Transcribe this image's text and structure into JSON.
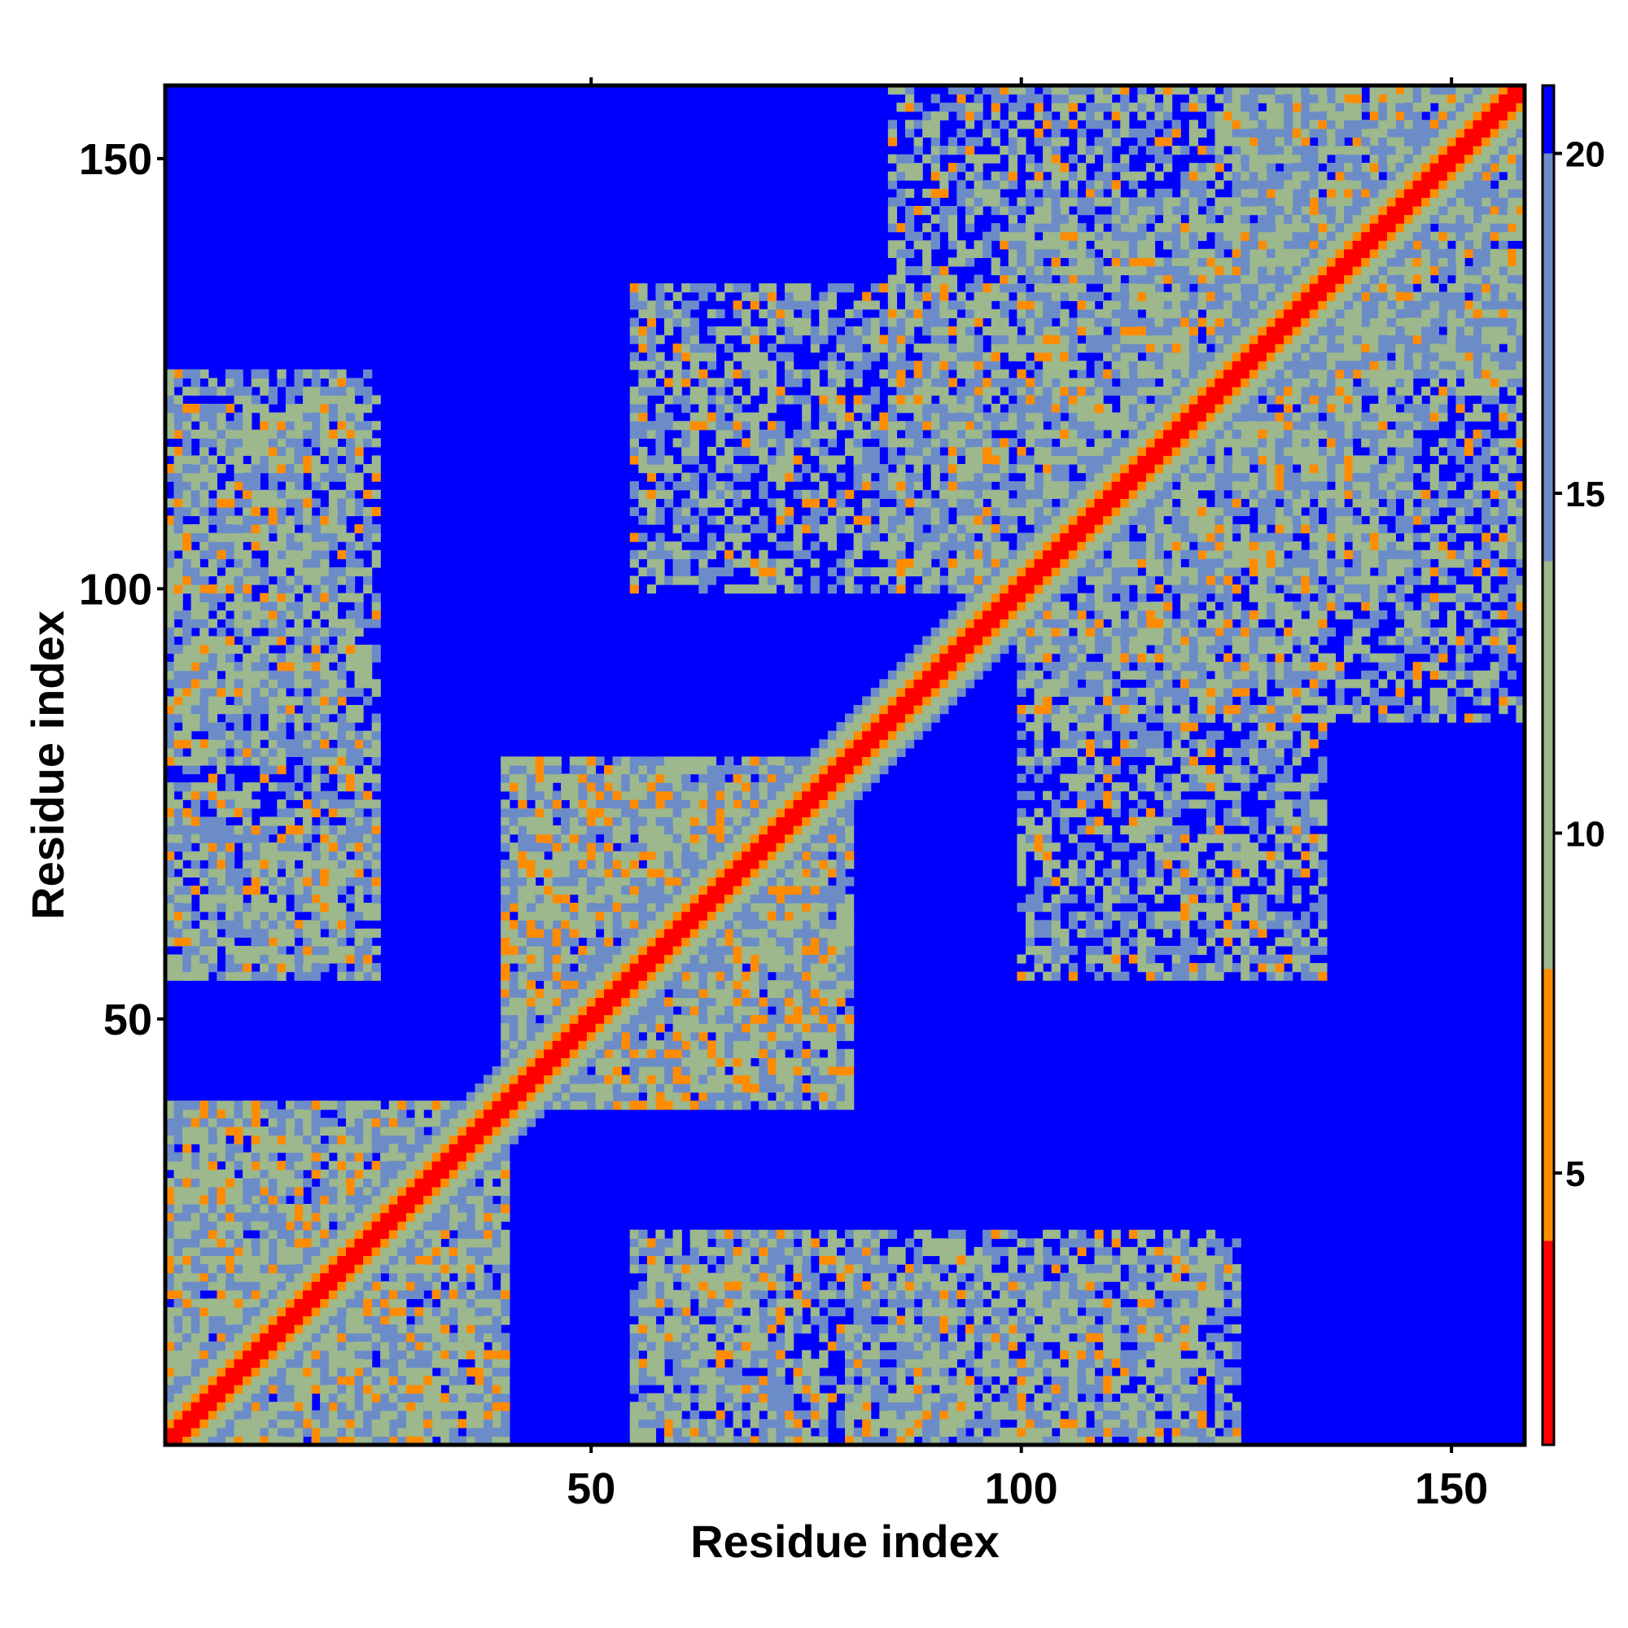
{
  "chart_data": {
    "type": "heatmap",
    "title": "",
    "xlabel": "Residue index",
    "ylabel": "Residue index",
    "xlim": [
      1,
      158
    ],
    "ylim": [
      1,
      158
    ],
    "x_ticks": [
      50,
      100,
      150
    ],
    "y_ticks": [
      50,
      100,
      150
    ],
    "colorbar": {
      "ticks": [
        5,
        10,
        15,
        20
      ],
      "range": [
        1,
        21
      ],
      "colors": [
        {
          "min": 0,
          "max": 4,
          "color": "#ff0000"
        },
        {
          "min": 4,
          "max": 8,
          "color": "#ff8c00"
        },
        {
          "min": 8,
          "max": 14,
          "color": "#9cb88c"
        },
        {
          "min": 14,
          "max": 20,
          "color": "#6c8cc8"
        },
        {
          "min": 20,
          "max": 99,
          "color": "#0000ff"
        }
      ]
    },
    "matrix_description": "symmetric residue-residue distance map; diagonal ~0",
    "contact_regions": [
      {
        "x": [
          1,
          40
        ],
        "y": [
          1,
          40
        ],
        "level": "near"
      },
      {
        "x": [
          40,
          80
        ],
        "y": [
          40,
          80
        ],
        "level": "near"
      },
      {
        "x": [
          1,
          25
        ],
        "y": [
          55,
          125
        ],
        "level": "mid"
      },
      {
        "x": [
          55,
          75
        ],
        "y": [
          1,
          25
        ],
        "level": "mid"
      },
      {
        "x": [
          80,
          125
        ],
        "y": [
          1,
          22
        ],
        "level": "mid"
      },
      {
        "x": [
          100,
          135
        ],
        "y": [
          55,
          98
        ],
        "level": "mid"
      },
      {
        "x": [
          85,
          145
        ],
        "y": [
          100,
          158
        ],
        "level": "mid"
      },
      {
        "x": [
          125,
          158
        ],
        "y": [
          125,
          158
        ],
        "level": "mid"
      }
    ]
  }
}
